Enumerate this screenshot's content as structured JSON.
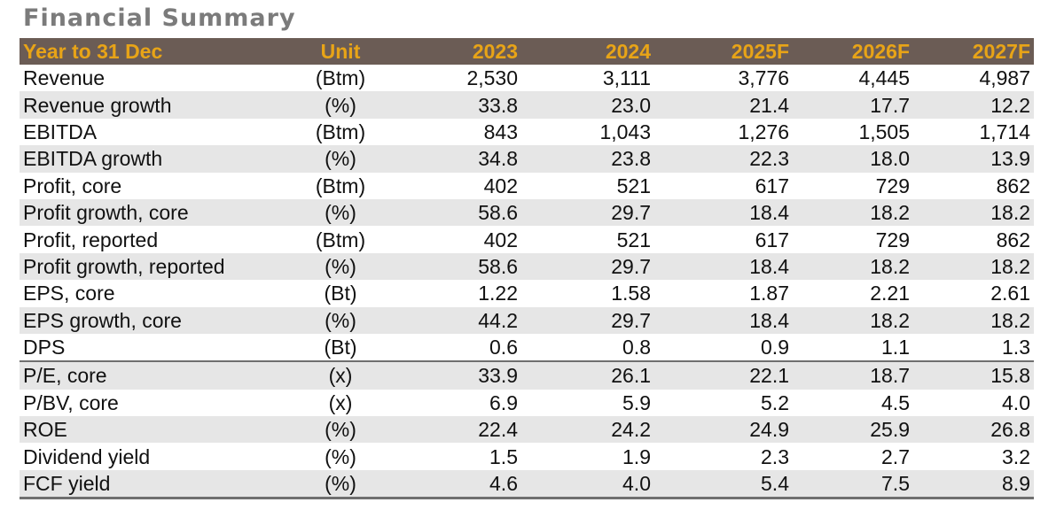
{
  "title": "Financial Summary",
  "header": {
    "label": "Year to 31 Dec",
    "unit": "Unit",
    "years": [
      "2023",
      "2024",
      "2025F",
      "2026F",
      "2027F"
    ]
  },
  "rows": [
    {
      "label": "Revenue",
      "unit": "(Btm)",
      "values": [
        "2,530",
        "3,111",
        "3,776",
        "4,445",
        "4,987"
      ]
    },
    {
      "label": "Revenue growth",
      "unit": "(%)",
      "values": [
        "33.8",
        "23.0",
        "21.4",
        "17.7",
        "12.2"
      ]
    },
    {
      "label": "EBITDA",
      "unit": "(Btm)",
      "values": [
        "843",
        "1,043",
        "1,276",
        "1,505",
        "1,714"
      ]
    },
    {
      "label": "EBITDA growth",
      "unit": "(%)",
      "values": [
        "34.8",
        "23.8",
        "22.3",
        "18.0",
        "13.9"
      ]
    },
    {
      "label": "Profit, core",
      "unit": "(Btm)",
      "values": [
        "402",
        "521",
        "617",
        "729",
        "862"
      ]
    },
    {
      "label": "Profit growth, core",
      "unit": "(%)",
      "values": [
        "58.6",
        "29.7",
        "18.4",
        "18.2",
        "18.2"
      ]
    },
    {
      "label": "Profit, reported",
      "unit": "(Btm)",
      "values": [
        "402",
        "521",
        "617",
        "729",
        "862"
      ]
    },
    {
      "label": "Profit growth, reported",
      "unit": "(%)",
      "values": [
        "58.6",
        "29.7",
        "18.4",
        "18.2",
        "18.2"
      ]
    },
    {
      "label": "EPS, core",
      "unit": "(Bt)",
      "values": [
        "1.22",
        "1.58",
        "1.87",
        "2.21",
        "2.61"
      ]
    },
    {
      "label": "EPS growth, core",
      "unit": "(%)",
      "values": [
        "44.2",
        "29.7",
        "18.4",
        "18.2",
        "18.2"
      ]
    },
    {
      "label": "DPS",
      "unit": "(Bt)",
      "values": [
        "0.6",
        "0.8",
        "0.9",
        "1.1",
        "1.3"
      ]
    },
    {
      "label": "P/E, core",
      "unit": "(x)",
      "values": [
        "33.9",
        "26.1",
        "22.1",
        "18.7",
        "15.8"
      ]
    },
    {
      "label": "P/BV, core",
      "unit": "(x)",
      "values": [
        "6.9",
        "5.9",
        "5.2",
        "4.5",
        "4.0"
      ]
    },
    {
      "label": "ROE",
      "unit": "(%)",
      "values": [
        "22.4",
        "24.2",
        "24.9",
        "25.9",
        "26.8"
      ]
    },
    {
      "label": "Dividend yield",
      "unit": "(%)",
      "values": [
        "1.5",
        "1.9",
        "2.3",
        "2.7",
        "3.2"
      ]
    },
    {
      "label": "FCF yield",
      "unit": "(%)",
      "values": [
        "4.6",
        "4.0",
        "5.4",
        "7.5",
        "8.9"
      ]
    }
  ],
  "colors": {
    "header_bg": "#6b5c55",
    "header_text": "#e8a417",
    "shade": "#e6e6e6",
    "title": "#7b7b7b"
  }
}
